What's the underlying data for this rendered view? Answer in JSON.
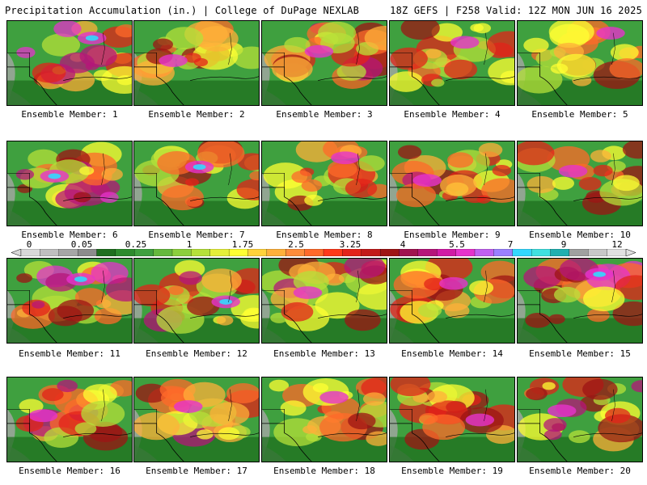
{
  "header": {
    "left": "Precipitation Accumulation (in.) | College of DuPage NEXLAB",
    "right": "18Z GEFS | F258 Valid: 12Z MON JUN 16 2025"
  },
  "legend": {
    "ticks": [
      "0",
      "0.05",
      "0.25",
      "1",
      "1.75",
      "2.5",
      "3.25",
      "4",
      "5.5",
      "7",
      "9",
      "12"
    ],
    "colors": [
      "#d9d9d9",
      "#bfbfbf",
      "#a6a6a6",
      "#8c8c8c",
      "#1f6f1f",
      "#2e8b2e",
      "#3fa03f",
      "#66b83d",
      "#8ccf3d",
      "#b5e03a",
      "#e5ef3a",
      "#ffff33",
      "#ffd23a",
      "#ffb03a",
      "#ff8c3a",
      "#ff6a2a",
      "#ff3a1a",
      "#e3231a",
      "#c21a1a",
      "#9e1414",
      "#a0134f",
      "#b5157a",
      "#d11aa5",
      "#e633cc",
      "#c060f0",
      "#9a80ff",
      "#33d8ff",
      "#40e0e0",
      "#20b0b0",
      "#a0a0a0",
      "#c8c8c8",
      "#e0e0e0"
    ]
  },
  "panels": [
    {
      "label": "Ensemble Member: 1",
      "level": 0.7
    },
    {
      "label": "Ensemble Member: 2",
      "level": 0.5
    },
    {
      "label": "Ensemble Member: 3",
      "level": 0.6
    },
    {
      "label": "Ensemble Member: 4",
      "level": 0.55
    },
    {
      "label": "Ensemble Member: 5",
      "level": 0.5
    },
    {
      "label": "Ensemble Member: 6",
      "level": 0.7
    },
    {
      "label": "Ensemble Member: 7",
      "level": 0.65
    },
    {
      "label": "Ensemble Member: 8",
      "level": 0.5
    },
    {
      "label": "Ensemble Member: 9",
      "level": 0.55
    },
    {
      "label": "Ensemble Member: 10",
      "level": 0.6
    },
    {
      "label": "Ensemble Member: 11",
      "level": 0.7
    },
    {
      "label": "Ensemble Member: 12",
      "level": 0.65
    },
    {
      "label": "Ensemble Member: 13",
      "level": 0.55
    },
    {
      "label": "Ensemble Member: 14",
      "level": 0.6
    },
    {
      "label": "Ensemble Member: 15",
      "level": 0.75
    },
    {
      "label": "Ensemble Member: 16",
      "level": 0.6
    },
    {
      "label": "Ensemble Member: 17",
      "level": 0.6
    },
    {
      "label": "Ensemble Member: 18",
      "level": 0.5
    },
    {
      "label": "Ensemble Member: 19",
      "level": 0.55
    },
    {
      "label": "Ensemble Member: 20",
      "level": 0.6
    }
  ]
}
